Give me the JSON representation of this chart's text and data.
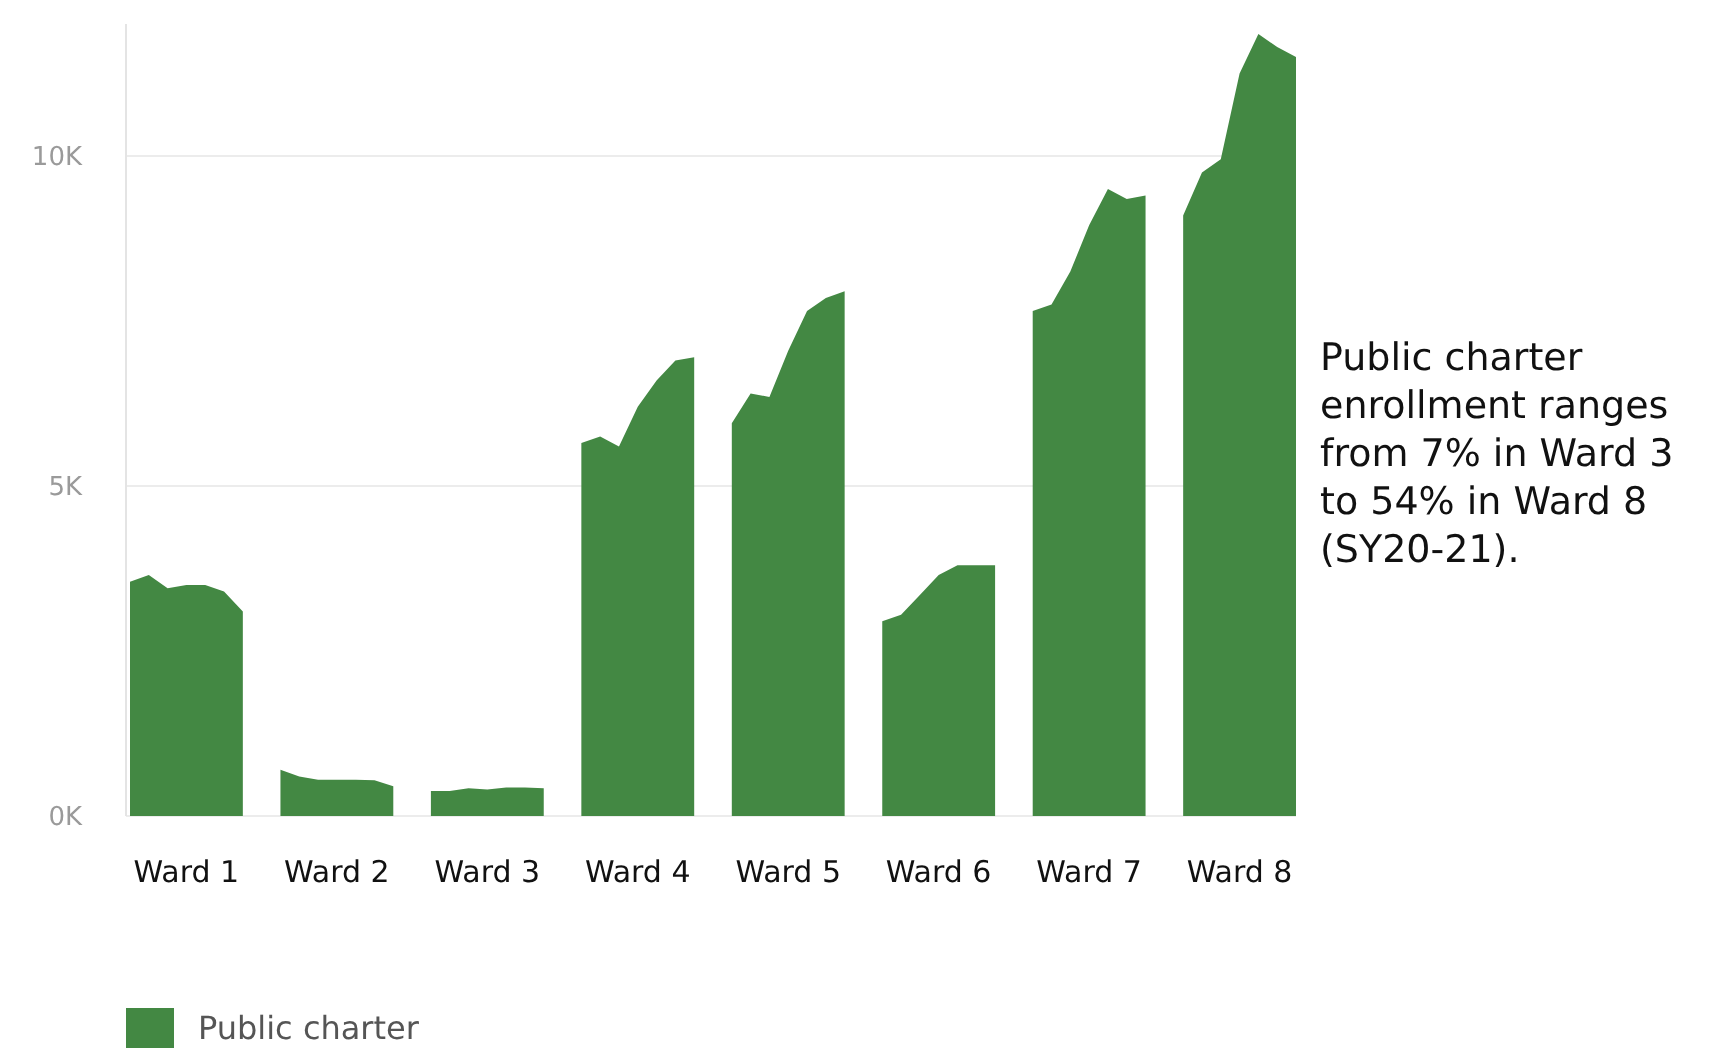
{
  "chart_data": {
    "type": "area",
    "categories": [
      null,
      null,
      null,
      "Ward 1",
      null,
      null,
      null,
      null,
      null,
      null,
      null,
      "Ward 2",
      null,
      null,
      null,
      null,
      null,
      null,
      null,
      "Ward 3",
      null,
      null,
      null,
      null,
      null,
      null,
      null,
      "Ward 4",
      null,
      null,
      null,
      null,
      null,
      null,
      null,
      "Ward 5",
      null,
      null,
      null,
      null,
      null,
      null,
      null,
      "Ward 6",
      null,
      null,
      null,
      null,
      null,
      null,
      null,
      "Ward 7",
      null,
      null,
      null,
      null,
      null,
      null,
      null,
      "Ward 8",
      null,
      null,
      null
    ],
    "series": [
      {
        "name": "Public charter",
        "color": "#438843",
        "values": [
          3550,
          3650,
          3450,
          3500,
          3500,
          3400,
          3100,
          null,
          700,
          600,
          550,
          550,
          550,
          540,
          450,
          null,
          380,
          380,
          420,
          400,
          430,
          430,
          420,
          null,
          5650,
          5750,
          5600,
          6200,
          6600,
          6900,
          6950,
          null,
          5950,
          6400,
          6350,
          7050,
          7650,
          7850,
          7950,
          null,
          2950,
          3050,
          3350,
          3650,
          3800,
          3800,
          3800,
          null,
          7650,
          7750,
          8250,
          8950,
          9500,
          9350,
          9400,
          null,
          9100,
          9750,
          9950,
          11250,
          11850,
          11650,
          11500
        ]
      }
    ],
    "yticks": [
      {
        "value": 0,
        "label": "0K"
      },
      {
        "value": 5000,
        "label": "5K"
      },
      {
        "value": 10000,
        "label": "10K"
      }
    ],
    "ylim": [
      0,
      12000
    ],
    "grid": "y",
    "legend": "bottom left",
    "annotations": [
      "Public charter enrollment ranges from 7% in Ward 3 to 54% in Ward 8 (SY20-21)."
    ]
  }
}
